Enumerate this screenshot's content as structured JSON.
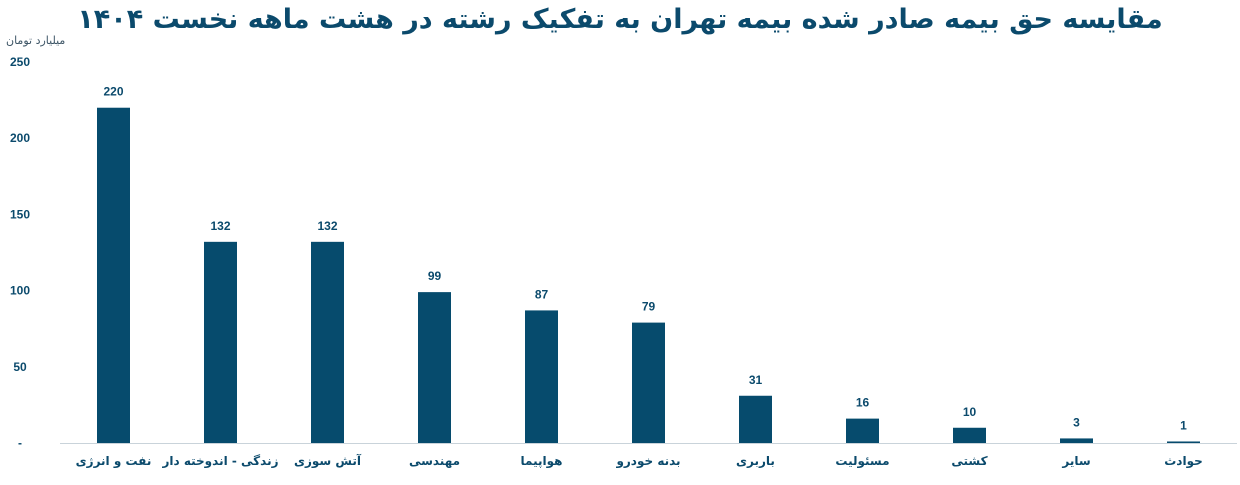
{
  "chart_data": {
    "type": "bar",
    "title": "مقایسه حق بیمه صادر شده بیمه تهران به تفکیک رشته در هشت ماهه نخست ۱۴۰۴",
    "ylabel": "میلیارد تومان",
    "xlabel": "",
    "categories": [
      "نفت و انرژی",
      "زندگی - اندوخته دار",
      "آتش سوزی",
      "مهندسی",
      "هواپیما",
      "بدنه خودرو",
      "باربری",
      "مسئولیت",
      "کشتی",
      "سایر",
      "حوادث"
    ],
    "values": [
      220,
      132,
      132,
      99,
      87,
      79,
      31,
      16,
      10,
      3,
      1
    ],
    "ylim": [
      0,
      250
    ],
    "yticks": [
      0,
      50,
      100,
      150,
      200,
      250
    ],
    "ytick_labels": [
      "-",
      "50",
      "100",
      "150",
      "200",
      "250"
    ],
    "grid": false,
    "legend": "none",
    "bar_color": "#064b6d",
    "title_color": "#0b4a6c"
  }
}
